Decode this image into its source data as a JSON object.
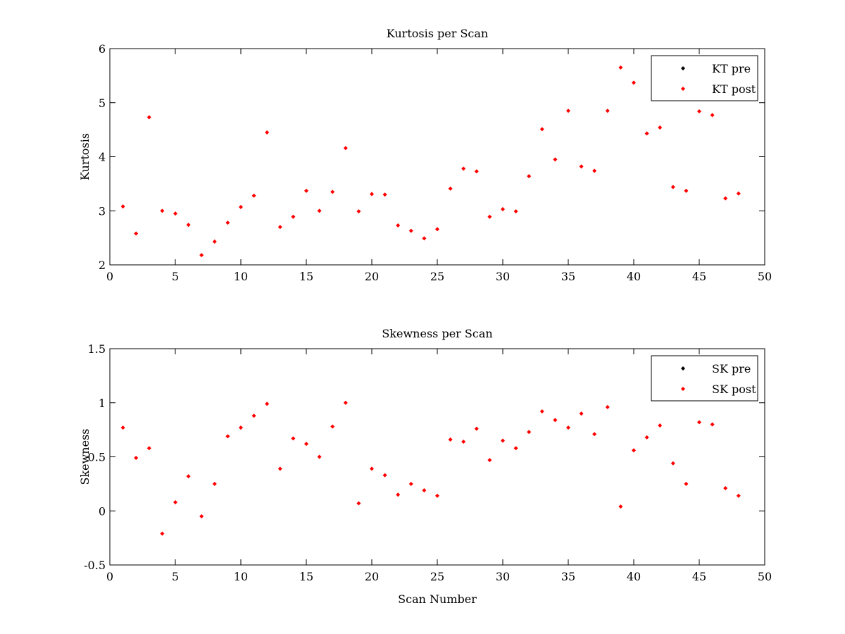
{
  "chart_data": [
    {
      "type": "scatter",
      "title": "Kurtosis per Scan",
      "xlabel": "",
      "ylabel": "Kurtosis",
      "xlim": [
        0,
        50
      ],
      "ylim": [
        2,
        6
      ],
      "xticks": [
        "0",
        "5",
        "10",
        "15",
        "20",
        "25",
        "30",
        "35",
        "40",
        "45",
        "50"
      ],
      "yticks": [
        "2",
        "3",
        "4",
        "5",
        "6"
      ],
      "xtick_values": [
        0,
        5,
        10,
        15,
        20,
        25,
        30,
        35,
        40,
        45,
        50
      ],
      "ytick_values": [
        2,
        3,
        4,
        5,
        6
      ],
      "legend_position": "top-right",
      "series": [
        {
          "name": "KT pre",
          "color": "#000000",
          "x": [],
          "y": []
        },
        {
          "name": "KT post",
          "color": "#ff0000",
          "x": [
            1,
            2,
            3,
            4,
            5,
            6,
            7,
            8,
            9,
            10,
            11,
            12,
            13,
            14,
            15,
            16,
            17,
            18,
            19,
            20,
            21,
            22,
            23,
            24,
            25,
            26,
            27,
            28,
            29,
            30,
            31,
            32,
            33,
            34,
            35,
            36,
            37,
            38,
            39,
            40,
            41,
            42,
            43,
            44,
            45,
            46,
            47,
            48
          ],
          "y": [
            3.08,
            2.58,
            4.73,
            3.0,
            2.95,
            2.74,
            2.18,
            2.43,
            2.78,
            3.07,
            3.28,
            4.45,
            2.7,
            2.89,
            3.37,
            3.0,
            3.35,
            4.16,
            2.99,
            3.31,
            3.3,
            2.73,
            2.63,
            2.49,
            2.66,
            3.41,
            3.78,
            3.73,
            2.89,
            3.03,
            2.99,
            3.64,
            4.51,
            3.95,
            4.85,
            3.82,
            3.74,
            4.85,
            5.65,
            5.37,
            4.43,
            4.54,
            3.44,
            3.37,
            4.84,
            4.77,
            3.23,
            3.32
          ]
        }
      ]
    },
    {
      "type": "scatter",
      "title": "Skewness per Scan",
      "xlabel": "Scan Number",
      "ylabel": "Skewness",
      "xlim": [
        0,
        50
      ],
      "ylim": [
        -0.5,
        1.5
      ],
      "xticks": [
        "0",
        "5",
        "10",
        "15",
        "20",
        "25",
        "30",
        "35",
        "40",
        "45",
        "50"
      ],
      "yticks": [
        "-0.5",
        "0",
        "0.5",
        "1",
        "1.5"
      ],
      "xtick_values": [
        0,
        5,
        10,
        15,
        20,
        25,
        30,
        35,
        40,
        45,
        50
      ],
      "ytick_values": [
        -0.5,
        0,
        0.5,
        1,
        1.5
      ],
      "legend_position": "top-right",
      "series": [
        {
          "name": "SK pre",
          "color": "#000000",
          "x": [],
          "y": []
        },
        {
          "name": "SK post",
          "color": "#ff0000",
          "x": [
            1,
            2,
            3,
            4,
            5,
            6,
            7,
            8,
            9,
            10,
            11,
            12,
            13,
            14,
            15,
            16,
            17,
            18,
            19,
            20,
            21,
            22,
            23,
            24,
            25,
            26,
            27,
            28,
            29,
            30,
            31,
            32,
            33,
            34,
            35,
            36,
            37,
            38,
            39,
            40,
            41,
            42,
            43,
            44,
            45,
            46,
            47,
            48
          ],
          "y": [
            0.77,
            0.49,
            0.58,
            -0.21,
            0.08,
            0.32,
            -0.05,
            0.25,
            0.69,
            0.77,
            0.88,
            0.99,
            0.39,
            0.67,
            0.62,
            0.5,
            0.78,
            1.0,
            0.07,
            0.39,
            0.33,
            0.15,
            0.25,
            0.19,
            0.14,
            0.66,
            0.64,
            0.76,
            0.47,
            0.65,
            0.58,
            0.73,
            0.92,
            0.84,
            0.77,
            0.9,
            0.71,
            0.96,
            0.04,
            0.56,
            0.68,
            0.79,
            0.44,
            0.25,
            0.82,
            0.8,
            0.21,
            0.14
          ]
        }
      ]
    }
  ]
}
